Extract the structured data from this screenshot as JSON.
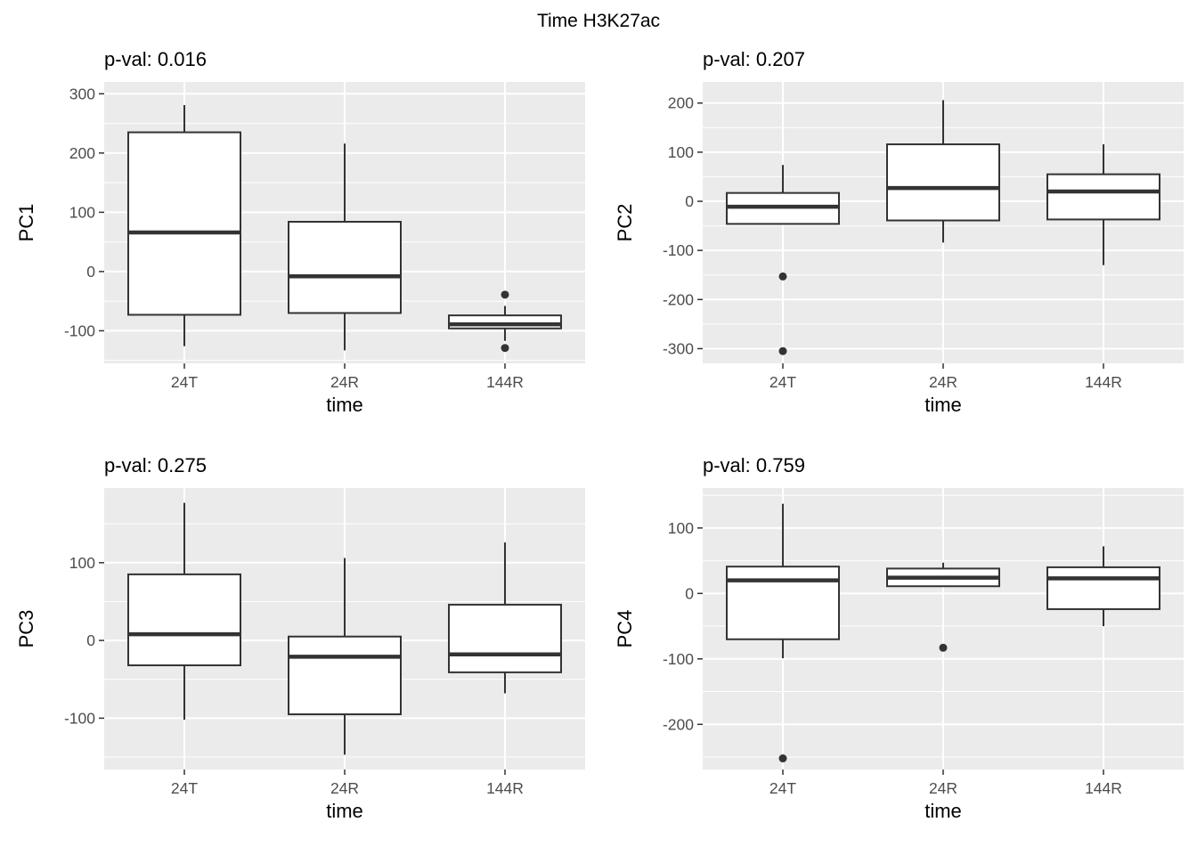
{
  "title": "Time H3K27ac",
  "colors": {
    "panel_background": "#EBEBEB",
    "gridline": "#FFFFFF",
    "box_stroke": "#333333",
    "box_fill": "#FFFFFF",
    "axis_tick_text": "#4D4D4D",
    "title_text": "#000000"
  },
  "chart_data": [
    {
      "type": "boxplot",
      "subtitle": "p-val: 0.016",
      "ylabel": "PC1",
      "xlabel": "time",
      "categories": [
        "24T",
        "24R",
        "144R"
      ],
      "yticks": [
        300,
        200,
        100,
        0,
        -100
      ],
      "ylim": [
        -155,
        320
      ],
      "grid": "major+minor",
      "series": [
        {
          "category": "24T",
          "whisker_low": -126,
          "q1": -73,
          "median": 66,
          "q3": 235,
          "whisker_high": 281,
          "outliers": []
        },
        {
          "category": "24R",
          "whisker_low": -133,
          "q1": -70,
          "median": -8,
          "q3": 84,
          "whisker_high": 216,
          "outliers": []
        },
        {
          "category": "144R",
          "whisker_low": -117,
          "q1": -96,
          "median": -89,
          "q3": -74,
          "whisker_high": -58,
          "outliers": [
            -39,
            -129
          ]
        }
      ]
    },
    {
      "type": "boxplot",
      "subtitle": "p-val: 0.207",
      "ylabel": "PC2",
      "xlabel": "time",
      "categories": [
        "24T",
        "24R",
        "144R"
      ],
      "yticks": [
        200,
        100,
        0,
        -100,
        -200,
        -300
      ],
      "ylim": [
        -330,
        243
      ],
      "grid": "major+minor",
      "series": [
        {
          "category": "24T",
          "whisker_low": -46,
          "q1": -46,
          "median": -11,
          "q3": 17,
          "whisker_high": 74,
          "outliers": [
            -153,
            -305
          ]
        },
        {
          "category": "24R",
          "whisker_low": -84,
          "q1": -39,
          "median": 27,
          "q3": 116,
          "whisker_high": 206,
          "outliers": []
        },
        {
          "category": "144R",
          "whisker_low": -130,
          "q1": -37,
          "median": 20,
          "q3": 55,
          "whisker_high": 116,
          "outliers": []
        }
      ]
    },
    {
      "type": "boxplot",
      "subtitle": "p-val: 0.275",
      "ylabel": "PC3",
      "xlabel": "time",
      "categories": [
        "24T",
        "24R",
        "144R"
      ],
      "yticks": [
        100,
        0,
        -100
      ],
      "ylim": [
        -166,
        196
      ],
      "grid": "major+minor",
      "series": [
        {
          "category": "24T",
          "whisker_low": -102,
          "q1": -32,
          "median": 8,
          "q3": 85,
          "whisker_high": 177,
          "outliers": []
        },
        {
          "category": "24R",
          "whisker_low": -147,
          "q1": -95,
          "median": -21,
          "q3": 5,
          "whisker_high": 106,
          "outliers": []
        },
        {
          "category": "144R",
          "whisker_low": -68,
          "q1": -41,
          "median": -18,
          "q3": 46,
          "whisker_high": 126,
          "outliers": []
        }
      ]
    },
    {
      "type": "boxplot",
      "subtitle": "p-val: 0.759",
      "ylabel": "PC4",
      "xlabel": "time",
      "categories": [
        "24T",
        "24R",
        "144R"
      ],
      "yticks": [
        100,
        0,
        -100,
        -200
      ],
      "ylim": [
        -269,
        161
      ],
      "grid": "major+minor",
      "series": [
        {
          "category": "24T",
          "whisker_low": -99,
          "q1": -70,
          "median": 20,
          "q3": 41,
          "whisker_high": 137,
          "outliers": [
            -252
          ]
        },
        {
          "category": "24R",
          "whisker_low": 11,
          "q1": 11,
          "median": 24,
          "q3": 38,
          "whisker_high": 47,
          "outliers": [
            -83
          ]
        },
        {
          "category": "144R",
          "whisker_low": -50,
          "q1": -24,
          "median": 23,
          "q3": 40,
          "whisker_high": 72,
          "outliers": []
        }
      ]
    }
  ]
}
